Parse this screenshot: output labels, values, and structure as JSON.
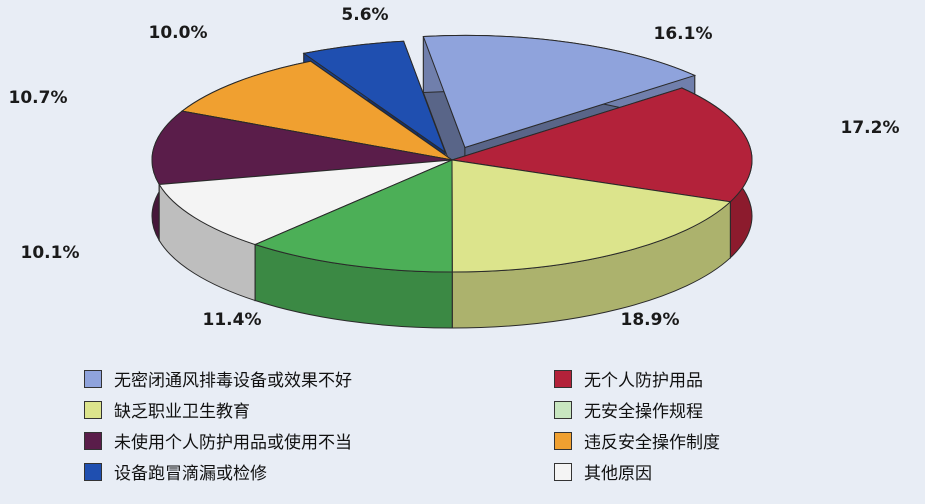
{
  "chart_data": {
    "type": "pie",
    "slices": [
      {
        "label": "无个人防护用品",
        "value": 17.2,
        "value_label": "17.2%",
        "color": "#b3223a"
      },
      {
        "label": "缺乏职业卫生教育",
        "value": 18.9,
        "value_label": "18.9%",
        "color": "#dce48c"
      },
      {
        "label": "无安全操作规程",
        "value": 11.4,
        "value_label": "11.4%",
        "color": "#4caf57"
      },
      {
        "label": "其他原因",
        "value": 10.1,
        "value_label": "10.1%",
        "color": "#f4f4f4"
      },
      {
        "label": "未使用个人防护用品或使用不当",
        "value": 10.7,
        "value_label": "10.7%",
        "color": "#5a1d4a"
      },
      {
        "label": "违反安全操作制度",
        "value": 10.0,
        "value_label": "10.0%",
        "color": "#f0a030"
      },
      {
        "label": "设备跑冒滴漏或检修",
        "value": 5.6,
        "value_label": "5.6%",
        "color": "#1f4fb0"
      },
      {
        "label": "无密闭通风排毒设备或效果不好",
        "value": 16.1,
        "value_label": "16.1%",
        "color": "#8fa3dc"
      }
    ],
    "legend_placement": "bottom",
    "legend": [
      {
        "label": "无密闭通风排毒设备或效果不好",
        "color": "#8fa3dc"
      },
      {
        "label": "无个人防护用品",
        "color": "#b3223a"
      },
      {
        "label": "缺乏职业卫生教育",
        "color": "#dce48c"
      },
      {
        "label": "无安全操作规程",
        "color": "#c8e6c0"
      },
      {
        "label": "未使用个人防护用品或使用不当",
        "color": "#5a1d4a"
      },
      {
        "label": "违反安全操作制度",
        "color": "#f0a030"
      },
      {
        "label": "设备跑冒滴漏或检修",
        "color": "#1f4fb0"
      },
      {
        "label": "其他原因",
        "color": "#f4f4f4"
      }
    ]
  }
}
